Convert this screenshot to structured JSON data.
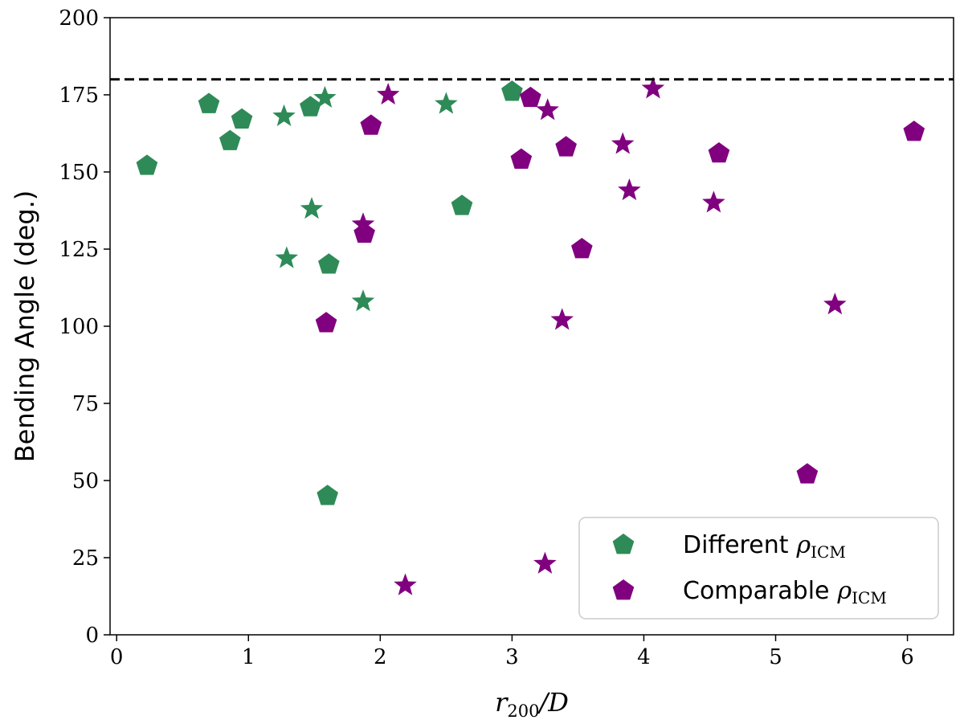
{
  "chart_data": {
    "type": "scatter",
    "xlabel": {
      "base": "r",
      "sub": "200",
      "suffix": "/D"
    },
    "ylabel": "Bending Angle (deg.)",
    "xlim": [
      -0.05,
      6.35
    ],
    "ylim": [
      0,
      200
    ],
    "xticks": [
      "0",
      "1",
      "2",
      "3",
      "4",
      "5",
      "6"
    ],
    "yticks": [
      "0",
      "25",
      "50",
      "75",
      "100",
      "125",
      "150",
      "175",
      "200"
    ],
    "reference_line": {
      "y": 180,
      "style": "dashed",
      "color": "#000000"
    },
    "grid": false,
    "legend": {
      "placement": "lower-right",
      "entries": [
        {
          "label": "Different",
          "symbol": "ρ",
          "sub": "ICM",
          "color": "#2e8b57"
        },
        {
          "label": "Comparable",
          "symbol": "ρ",
          "sub": "ICM",
          "color": "#800080"
        }
      ]
    },
    "series": [
      {
        "name": "Different ρICM",
        "color": "#2e8b57",
        "pentagons": [
          [
            0.23,
            152
          ],
          [
            0.7,
            172
          ],
          [
            0.86,
            160
          ],
          [
            0.95,
            167
          ],
          [
            1.47,
            171
          ],
          [
            1.6,
            45
          ],
          [
            1.61,
            120
          ],
          [
            2.62,
            139
          ],
          [
            3.0,
            176
          ]
        ],
        "stars": [
          [
            1.27,
            168
          ],
          [
            1.29,
            122
          ],
          [
            1.48,
            138
          ],
          [
            1.58,
            174
          ],
          [
            1.87,
            108
          ],
          [
            2.5,
            172
          ]
        ]
      },
      {
        "name": "Comparable ρICM",
        "color": "#800080",
        "pentagons": [
          [
            1.59,
            101
          ],
          [
            1.88,
            130
          ],
          [
            1.93,
            165
          ],
          [
            3.07,
            154
          ],
          [
            3.14,
            174
          ],
          [
            3.41,
            158
          ],
          [
            3.53,
            125
          ],
          [
            4.57,
            156
          ],
          [
            5.24,
            52
          ],
          [
            6.05,
            163
          ]
        ],
        "stars": [
          [
            1.87,
            133
          ],
          [
            2.06,
            175
          ],
          [
            2.19,
            16
          ],
          [
            3.25,
            23
          ],
          [
            3.27,
            170
          ],
          [
            3.38,
            102
          ],
          [
            3.84,
            159
          ],
          [
            3.89,
            144
          ],
          [
            4.07,
            177
          ],
          [
            4.53,
            140
          ],
          [
            5.45,
            107
          ]
        ]
      }
    ]
  }
}
